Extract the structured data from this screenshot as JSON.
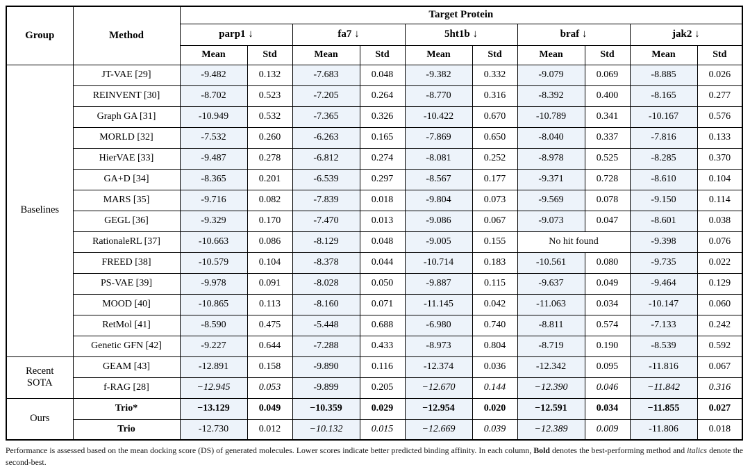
{
  "table": {
    "header": {
      "group": "Group",
      "method": "Method",
      "target_protein": "Target Protein",
      "proteins": [
        "parp1 ↓",
        "fa7 ↓",
        "5ht1b ↓",
        "braf ↓",
        "jak2 ↓"
      ],
      "subcols": [
        "Mean",
        "Std"
      ]
    },
    "groups": [
      {
        "name": "Baselines",
        "rows": [
          {
            "method": "JT-VAE [29]",
            "values": [
              "-9.482",
              "0.132",
              "-7.683",
              "0.048",
              "-9.382",
              "0.332",
              "-9.079",
              "0.069",
              "-8.885",
              "0.026"
            ]
          },
          {
            "method": "REINVENT [30]",
            "values": [
              "-8.702",
              "0.523",
              "-7.205",
              "0.264",
              "-8.770",
              "0.316",
              "-8.392",
              "0.400",
              "-8.165",
              "0.277"
            ]
          },
          {
            "method": "Graph GA [31]",
            "values": [
              "-10.949",
              "0.532",
              "-7.365",
              "0.326",
              "-10.422",
              "0.670",
              "-10.789",
              "0.341",
              "-10.167",
              "0.576"
            ]
          },
          {
            "method": "MORLD [32]",
            "values": [
              "-7.532",
              "0.260",
              "-6.263",
              "0.165",
              "-7.869",
              "0.650",
              "-8.040",
              "0.337",
              "-7.816",
              "0.133"
            ]
          },
          {
            "method": "HierVAE [33]",
            "values": [
              "-9.487",
              "0.278",
              "-6.812",
              "0.274",
              "-8.081",
              "0.252",
              "-8.978",
              "0.525",
              "-8.285",
              "0.370"
            ]
          },
          {
            "method": "GA+D [34]",
            "values": [
              "-8.365",
              "0.201",
              "-6.539",
              "0.297",
              "-8.567",
              "0.177",
              "-9.371",
              "0.728",
              "-8.610",
              "0.104"
            ]
          },
          {
            "method": "MARS [35]",
            "values": [
              "-9.716",
              "0.082",
              "-7.839",
              "0.018",
              "-9.804",
              "0.073",
              "-9.569",
              "0.078",
              "-9.150",
              "0.114"
            ]
          },
          {
            "method": "GEGL [36]",
            "values": [
              "-9.329",
              "0.170",
              "-7.470",
              "0.013",
              "-9.086",
              "0.067",
              "-9.073",
              "0.047",
              "-8.601",
              "0.038"
            ]
          },
          {
            "method": "RationaleRL [37]",
            "values": [
              "-10.663",
              "0.086",
              "-8.129",
              "0.048",
              "-9.005",
              "0.155",
              "No hit found",
              null,
              "-9.398",
              "0.076"
            ]
          },
          {
            "method": "FREED [38]",
            "values": [
              "-10.579",
              "0.104",
              "-8.378",
              "0.044",
              "-10.714",
              "0.183",
              "-10.561",
              "0.080",
              "-9.735",
              "0.022"
            ]
          },
          {
            "method": "PS-VAE [39]",
            "values": [
              "-9.978",
              "0.091",
              "-8.028",
              "0.050",
              "-9.887",
              "0.115",
              "-9.637",
              "0.049",
              "-9.464",
              "0.129"
            ]
          },
          {
            "method": "MOOD [40]",
            "values": [
              "-10.865",
              "0.113",
              "-8.160",
              "0.071",
              "-11.145",
              "0.042",
              "-11.063",
              "0.034",
              "-10.147",
              "0.060"
            ]
          },
          {
            "method": "RetMol [41]",
            "values": [
              "-8.590",
              "0.475",
              "-5.448",
              "0.688",
              "-6.980",
              "0.740",
              "-8.811",
              "0.574",
              "-7.133",
              "0.242"
            ]
          },
          {
            "method": "Genetic GFN [42]",
            "values": [
              "-9.227",
              "0.644",
              "-7.288",
              "0.433",
              "-8.973",
              "0.804",
              "-8.719",
              "0.190",
              "-8.539",
              "0.592"
            ]
          }
        ]
      },
      {
        "name": "Recent\nSOTA",
        "rows": [
          {
            "method": "GEAM [43]",
            "values": [
              "-12.891",
              "0.158",
              "-9.890",
              "0.116",
              "-12.374",
              "0.036",
              "-12.342",
              "0.095",
              "-11.816",
              "0.067"
            ]
          },
          {
            "method": "f-RAG [28]",
            "values": [
              "−12.945",
              "0.053",
              "-9.899",
              "0.205",
              "−12.670",
              "0.144",
              "−12.390",
              "0.046",
              "−11.842",
              "0.316"
            ],
            "styles": [
              "i",
              "i",
              "",
              "",
              "i",
              "i",
              "i",
              "i",
              "i",
              "i"
            ]
          }
        ]
      },
      {
        "name": "Ours",
        "rows": [
          {
            "method": "Trio*",
            "method_style": "b",
            "values": [
              "−13.129",
              "0.049",
              "−10.359",
              "0.029",
              "−12.954",
              "0.020",
              "−12.591",
              "0.034",
              "−11.855",
              "0.027"
            ],
            "styles": [
              "b",
              "b",
              "b",
              "b",
              "b",
              "b",
              "b",
              "b",
              "b",
              "b"
            ]
          },
          {
            "method": "Trio",
            "method_style": "b",
            "values": [
              "-12.730",
              "0.012",
              "−10.132",
              "0.015",
              "−12.669",
              "0.039",
              "−12.389",
              "0.009",
              "-11.806",
              "0.018"
            ],
            "styles": [
              "",
              "",
              "i",
              "i",
              "i",
              "i",
              "i",
              "i",
              "",
              ""
            ]
          }
        ]
      }
    ]
  },
  "footnote": {
    "part1": "Performance is assessed based on the mean docking score (DS) of generated molecules. Lower scores indicate better predicted binding affinity. In each column, ",
    "bold_word": "Bold",
    "part2": " denotes the best-performing method and ",
    "italic_word": "italics",
    "part3": " denote the second-best."
  },
  "colors": {
    "mean_cell_tint": "#edf3fa",
    "border": "#000000",
    "background": "#ffffff"
  }
}
